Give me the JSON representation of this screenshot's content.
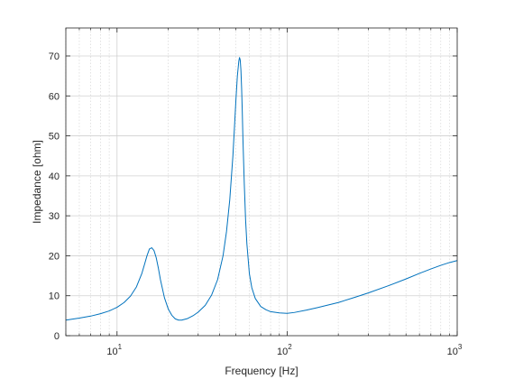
{
  "chart_data": {
    "type": "line",
    "title": "",
    "xlabel": "Frequency [Hz]",
    "ylabel": "Impedance [ohm]",
    "xscale": "log",
    "xlim": [
      5,
      1000
    ],
    "ylim": [
      0,
      77
    ],
    "grid": true,
    "minor_grid_x": true,
    "x_ticks": [
      {
        "value": 10,
        "base": "10",
        "exp": "1"
      },
      {
        "value": 100,
        "base": "10",
        "exp": "2"
      },
      {
        "value": 1000,
        "base": "10",
        "exp": "3"
      }
    ],
    "y_ticks": [
      0,
      10,
      20,
      30,
      40,
      50,
      60,
      70
    ],
    "series": [
      {
        "color": "#0072bd",
        "x": [
          5,
          6,
          7,
          8,
          9,
          10,
          11,
          12,
          13,
          14,
          14.5,
          15,
          15.5,
          16,
          16.5,
          17,
          17.5,
          18,
          19,
          20,
          21,
          22,
          23,
          24,
          26,
          28,
          30,
          33,
          36,
          39,
          42,
          44,
          46,
          48,
          49,
          50,
          51,
          52,
          52.5,
          53,
          53.5,
          54,
          54.5,
          55,
          56,
          57,
          58,
          60,
          62,
          65,
          70,
          75,
          80,
          90,
          100,
          110,
          130,
          150,
          200,
          250,
          300,
          400,
          500,
          600,
          700,
          800,
          900,
          1000
        ],
        "y": [
          3.9,
          4.4,
          4.9,
          5.5,
          6.2,
          7.1,
          8.3,
          9.9,
          12.2,
          15.6,
          17.8,
          20.0,
          21.7,
          22.0,
          21.3,
          19.5,
          16.9,
          14.0,
          9.5,
          6.7,
          5.1,
          4.2,
          3.9,
          3.9,
          4.3,
          5.0,
          5.9,
          7.6,
          10.2,
          14.0,
          20.0,
          26.0,
          34.0,
          45.0,
          52.0,
          59.0,
          65.0,
          68.7,
          69.6,
          69.0,
          66.5,
          62.0,
          56.0,
          49.0,
          38.0,
          29.0,
          23.0,
          15.5,
          12.0,
          9.3,
          7.3,
          6.5,
          6.0,
          5.7,
          5.6,
          5.8,
          6.4,
          7.0,
          8.3,
          9.6,
          10.7,
          12.6,
          14.2,
          15.6,
          16.7,
          17.6,
          18.3,
          18.8
        ]
      }
    ]
  }
}
